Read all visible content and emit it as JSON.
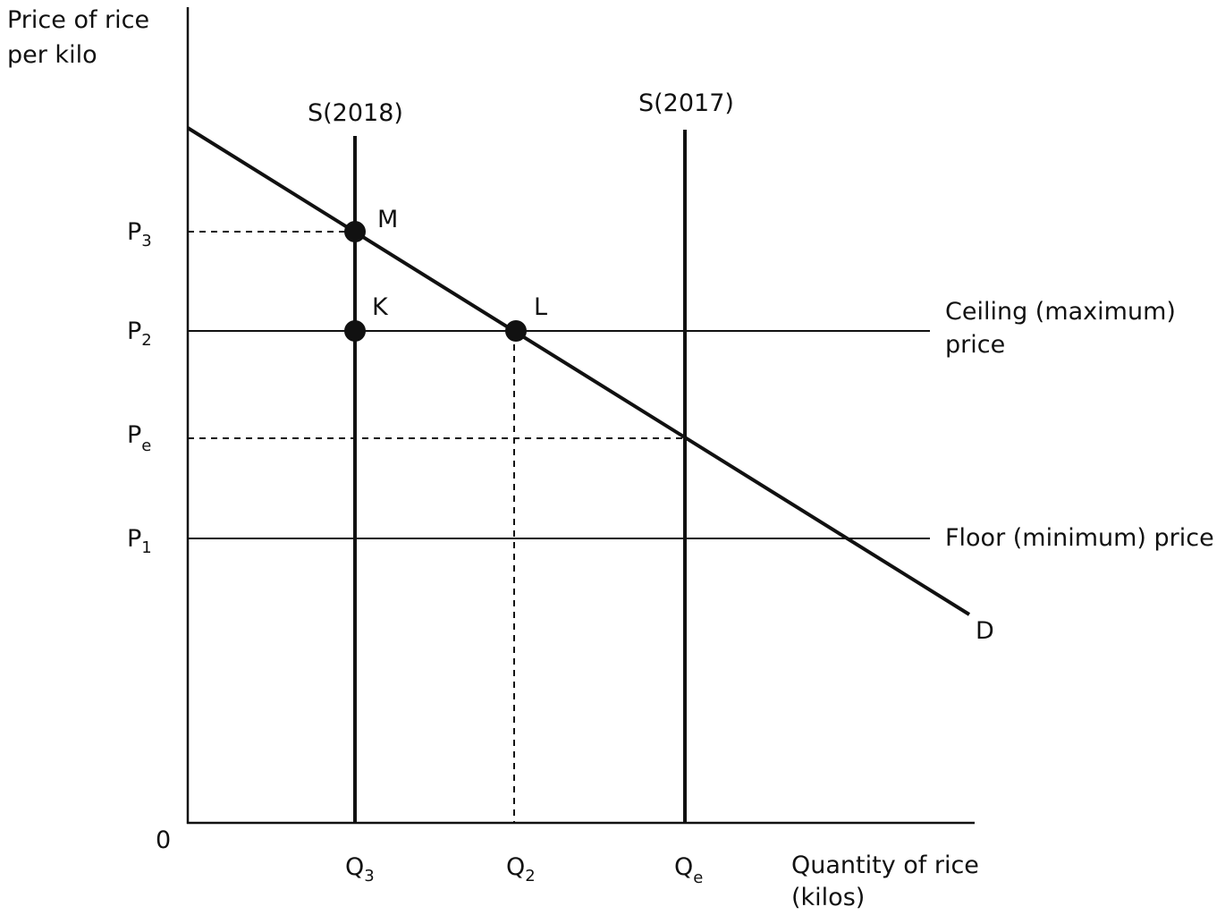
{
  "axes": {
    "y_label": [
      "Price of rice",
      "per kilo"
    ],
    "x_label": [
      "Quantity of rice",
      "(kilos)"
    ],
    "origin": "0"
  },
  "price_ticks": [
    {
      "base": "P",
      "sub": "3"
    },
    {
      "base": "P",
      "sub": "2"
    },
    {
      "base": "P",
      "sub": "e"
    },
    {
      "base": "P",
      "sub": "1"
    }
  ],
  "quantity_ticks": [
    {
      "base": "Q",
      "sub": "3"
    },
    {
      "base": "Q",
      "sub": "2"
    },
    {
      "base": "Q",
      "sub": "e"
    }
  ],
  "curves": {
    "demand": "D",
    "supply_2018": "S(2018)",
    "supply_2017": "S(2017)"
  },
  "price_lines": {
    "ceiling": [
      "Ceiling (maximum)",
      "price"
    ],
    "floor": "Floor (minimum) price"
  },
  "points": {
    "M": "M",
    "K": "K",
    "L": "L"
  },
  "colors": {
    "ink": "#111111",
    "background": "#ffffff"
  }
}
